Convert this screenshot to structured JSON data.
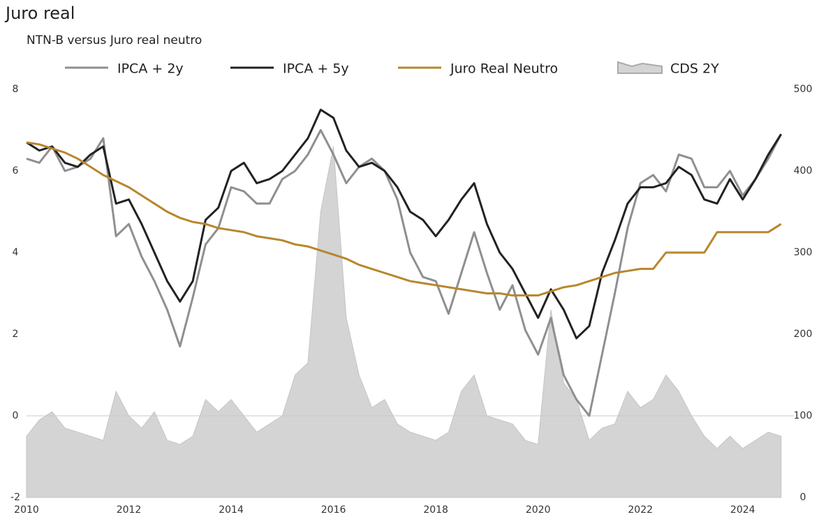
{
  "chart_data": {
    "type": "line",
    "title": "Juro real",
    "subtitle": "NTN-B versus Juro real neutro",
    "legend": "top",
    "grid": false,
    "zero_line": true,
    "x": [
      2010,
      2010.25,
      2010.5,
      2010.75,
      2011,
      2011.25,
      2011.5,
      2011.75,
      2012,
      2012.25,
      2012.5,
      2012.75,
      2013,
      2013.25,
      2013.5,
      2013.75,
      2014,
      2014.25,
      2014.5,
      2014.75,
      2015,
      2015.25,
      2015.5,
      2015.75,
      2016,
      2016.25,
      2016.5,
      2016.75,
      2017,
      2017.25,
      2017.5,
      2017.75,
      2018,
      2018.25,
      2018.5,
      2018.75,
      2019,
      2019.25,
      2019.5,
      2019.75,
      2020,
      2020.25,
      2020.5,
      2020.75,
      2021,
      2021.25,
      2021.5,
      2021.75,
      2022,
      2022.25,
      2022.5,
      2022.75,
      2023,
      2023.25,
      2023.5,
      2023.75,
      2024,
      2024.25,
      2024.5,
      2024.75
    ],
    "xlim": [
      2010,
      2025
    ],
    "xticks": [
      2010,
      2012,
      2014,
      2016,
      2018,
      2020,
      2022,
      2024
    ],
    "ylim": [
      -2,
      8
    ],
    "yticks": [
      -2,
      0,
      2,
      4,
      6,
      8
    ],
    "y2lim": [
      0,
      500
    ],
    "y2ticks": [
      0,
      100,
      200,
      300,
      400,
      500
    ],
    "series": [
      {
        "name": "CDS 2Y",
        "type": "area",
        "axis": "y2",
        "color": "#d4d4d4",
        "values": [
          75,
          95,
          105,
          85,
          80,
          75,
          70,
          130,
          100,
          85,
          105,
          70,
          65,
          75,
          120,
          105,
          120,
          100,
          80,
          90,
          100,
          150,
          165,
          350,
          430,
          220,
          150,
          110,
          120,
          90,
          80,
          75,
          70,
          80,
          130,
          150,
          100,
          95,
          90,
          70,
          65,
          230,
          140,
          120,
          70,
          85,
          90,
          130,
          110,
          120,
          150,
          130,
          100,
          75,
          60,
          75,
          60,
          70,
          80,
          75
        ]
      },
      {
        "name": "IPCA + 2y",
        "axis": "y",
        "color": "#8f8f8f",
        "values": [
          6.3,
          6.2,
          6.6,
          6.0,
          6.1,
          6.3,
          6.8,
          4.4,
          4.7,
          3.9,
          3.3,
          2.6,
          1.7,
          2.9,
          4.2,
          4.6,
          5.6,
          5.5,
          5.2,
          5.2,
          5.8,
          6.0,
          6.4,
          7.0,
          6.4,
          5.7,
          6.1,
          6.3,
          6.0,
          5.3,
          4.0,
          3.4,
          3.3,
          2.5,
          3.5,
          4.5,
          3.5,
          2.6,
          3.2,
          2.1,
          1.5,
          2.4,
          1.0,
          0.4,
          0.0,
          1.5,
          3.0,
          4.6,
          5.7,
          5.9,
          5.5,
          6.4,
          6.3,
          5.6,
          5.6,
          6.0,
          5.4,
          5.8,
          6.3,
          6.9
        ]
      },
      {
        "name": "IPCA + 5y",
        "axis": "y",
        "color": "#222222",
        "values": [
          6.7,
          6.5,
          6.6,
          6.2,
          6.1,
          6.4,
          6.6,
          5.2,
          5.3,
          4.7,
          4.0,
          3.3,
          2.8,
          3.3,
          4.8,
          5.1,
          6.0,
          6.2,
          5.7,
          5.8,
          6.0,
          6.4,
          6.8,
          7.5,
          7.3,
          6.5,
          6.1,
          6.2,
          6.0,
          5.6,
          5.0,
          4.8,
          4.4,
          4.8,
          5.3,
          5.7,
          4.7,
          4.0,
          3.6,
          3.0,
          2.4,
          3.1,
          2.6,
          1.9,
          2.2,
          3.5,
          4.3,
          5.2,
          5.6,
          5.6,
          5.7,
          6.1,
          5.9,
          5.3,
          5.2,
          5.8,
          5.3,
          5.8,
          6.4,
          6.9
        ]
      },
      {
        "name": "Juro Real Neutro",
        "axis": "y",
        "color": "#b8862c",
        "values": [
          6.7,
          6.65,
          6.55,
          6.45,
          6.3,
          6.1,
          5.9,
          5.75,
          5.6,
          5.4,
          5.2,
          5.0,
          4.85,
          4.75,
          4.7,
          4.6,
          4.55,
          4.5,
          4.4,
          4.35,
          4.3,
          4.2,
          4.15,
          4.05,
          3.95,
          3.85,
          3.7,
          3.6,
          3.5,
          3.4,
          3.3,
          3.25,
          3.2,
          3.15,
          3.1,
          3.05,
          3.0,
          3.0,
          2.95,
          2.95,
          2.95,
          3.05,
          3.15,
          3.2,
          3.3,
          3.4,
          3.5,
          3.55,
          3.6,
          3.6,
          4.0,
          4.0,
          4.0,
          4.0,
          4.5,
          4.5,
          4.5,
          4.5,
          4.5,
          4.7
        ]
      }
    ]
  }
}
